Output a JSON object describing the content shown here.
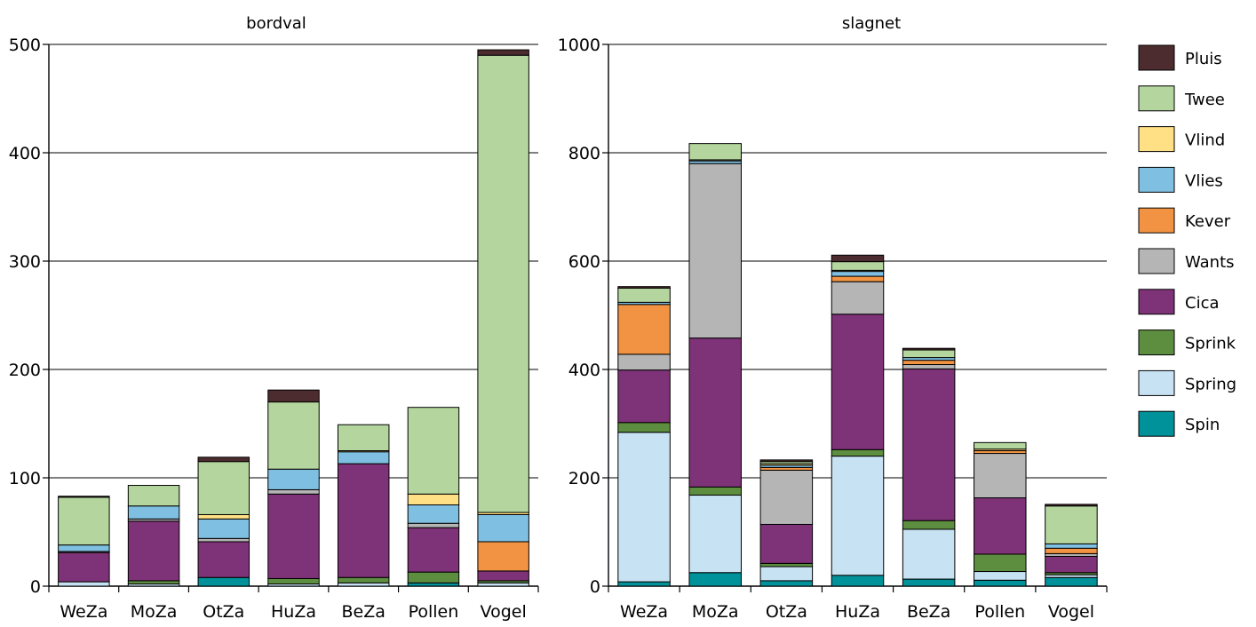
{
  "chart_data": [
    {
      "type": "bar",
      "stacked": true,
      "title": "bordval",
      "xlabel": "",
      "ylabel": "",
      "ylim": [
        0,
        500
      ],
      "yticks": [
        0,
        100,
        200,
        300,
        400,
        500
      ],
      "grid": true,
      "categories": [
        "WeZa",
        "MoZa",
        "OtZa",
        "HuZa",
        "BeZa",
        "Pollen",
        "Vogel"
      ],
      "series": [
        {
          "name": "Spin",
          "color": "#00929A",
          "values": [
            0,
            0,
            8,
            0,
            0,
            3,
            0
          ]
        },
        {
          "name": "Spring",
          "color": "#C7E2F3",
          "values": [
            4,
            2,
            0,
            2,
            3,
            0,
            3
          ]
        },
        {
          "name": "Sprink",
          "color": "#5D8D3E",
          "values": [
            0,
            3,
            0,
            5,
            5,
            10,
            2
          ]
        },
        {
          "name": "Cica",
          "color": "#7E3277",
          "values": [
            27,
            55,
            33,
            78,
            105,
            41,
            9
          ]
        },
        {
          "name": "Wants",
          "color": "#B5B5B5",
          "values": [
            1,
            2,
            3,
            4,
            0,
            4,
            0
          ]
        },
        {
          "name": "Kever",
          "color": "#F19342",
          "values": [
            0,
            0,
            0,
            0,
            0,
            0,
            27
          ]
        },
        {
          "name": "Vlies",
          "color": "#7FBFE2",
          "values": [
            6,
            12,
            18,
            19,
            11,
            17,
            25
          ]
        },
        {
          "name": "Vlind",
          "color": "#FFE084",
          "values": [
            0,
            0,
            4,
            0,
            1,
            10,
            2
          ]
        },
        {
          "name": "Twee",
          "color": "#B4D69E",
          "values": [
            44,
            19,
            49,
            62,
            24,
            80,
            422
          ]
        },
        {
          "name": "Pluis",
          "color": "#4C2C2E",
          "values": [
            1,
            0,
            4,
            11,
            0,
            0,
            5
          ]
        }
      ]
    },
    {
      "type": "bar",
      "stacked": true,
      "title": "slagnet",
      "xlabel": "",
      "ylabel": "",
      "ylim": [
        0,
        1000
      ],
      "yticks": [
        0,
        200,
        400,
        600,
        800,
        1000
      ],
      "grid": true,
      "categories": [
        "WeZa",
        "MoZa",
        "OtZa",
        "HuZa",
        "BeZa",
        "Pollen",
        "Vogel"
      ],
      "series": [
        {
          "name": "Spin",
          "color": "#00929A",
          "values": [
            8,
            25,
            10,
            20,
            13,
            11,
            16
          ]
        },
        {
          "name": "Spring",
          "color": "#C7E2F3",
          "values": [
            276,
            143,
            26,
            220,
            92,
            16,
            5
          ]
        },
        {
          "name": "Sprink",
          "color": "#5D8D3E",
          "values": [
            18,
            15,
            6,
            12,
            16,
            32,
            4
          ]
        },
        {
          "name": "Cica",
          "color": "#7E3277",
          "values": [
            97,
            275,
            72,
            250,
            280,
            104,
            30
          ]
        },
        {
          "name": "Wants",
          "color": "#B5B5B5",
          "values": [
            29,
            322,
            100,
            60,
            8,
            82,
            5
          ]
        },
        {
          "name": "Kever",
          "color": "#F19342",
          "values": [
            92,
            0,
            5,
            10,
            8,
            5,
            10
          ]
        },
        {
          "name": "Vlies",
          "color": "#7FBFE2",
          "values": [
            4,
            5,
            4,
            9,
            5,
            0,
            8
          ]
        },
        {
          "name": "Vlind",
          "color": "#FFE084",
          "values": [
            0,
            2,
            3,
            2,
            0,
            3,
            0
          ]
        },
        {
          "name": "Twee",
          "color": "#B4D69E",
          "values": [
            26,
            30,
            4,
            16,
            14,
            12,
            70
          ]
        },
        {
          "name": "Pluis",
          "color": "#4C2C2E",
          "values": [
            3,
            0,
            3,
            12,
            3,
            0,
            3
          ]
        }
      ]
    }
  ],
  "legend": {
    "placement": "right",
    "items": [
      {
        "name": "Pluis",
        "color": "#4C2C2E"
      },
      {
        "name": "Twee",
        "color": "#B4D69E"
      },
      {
        "name": "Vlind",
        "color": "#FFE084"
      },
      {
        "name": "Vlies",
        "color": "#7FBFE2"
      },
      {
        "name": "Kever",
        "color": "#F19342"
      },
      {
        "name": "Wants",
        "color": "#B5B5B5"
      },
      {
        "name": "Cica",
        "color": "#7E3277"
      },
      {
        "name": "Sprink",
        "color": "#5D8D3E"
      },
      {
        "name": "Spring",
        "color": "#C7E2F3"
      },
      {
        "name": "Spin",
        "color": "#00929A"
      }
    ]
  }
}
